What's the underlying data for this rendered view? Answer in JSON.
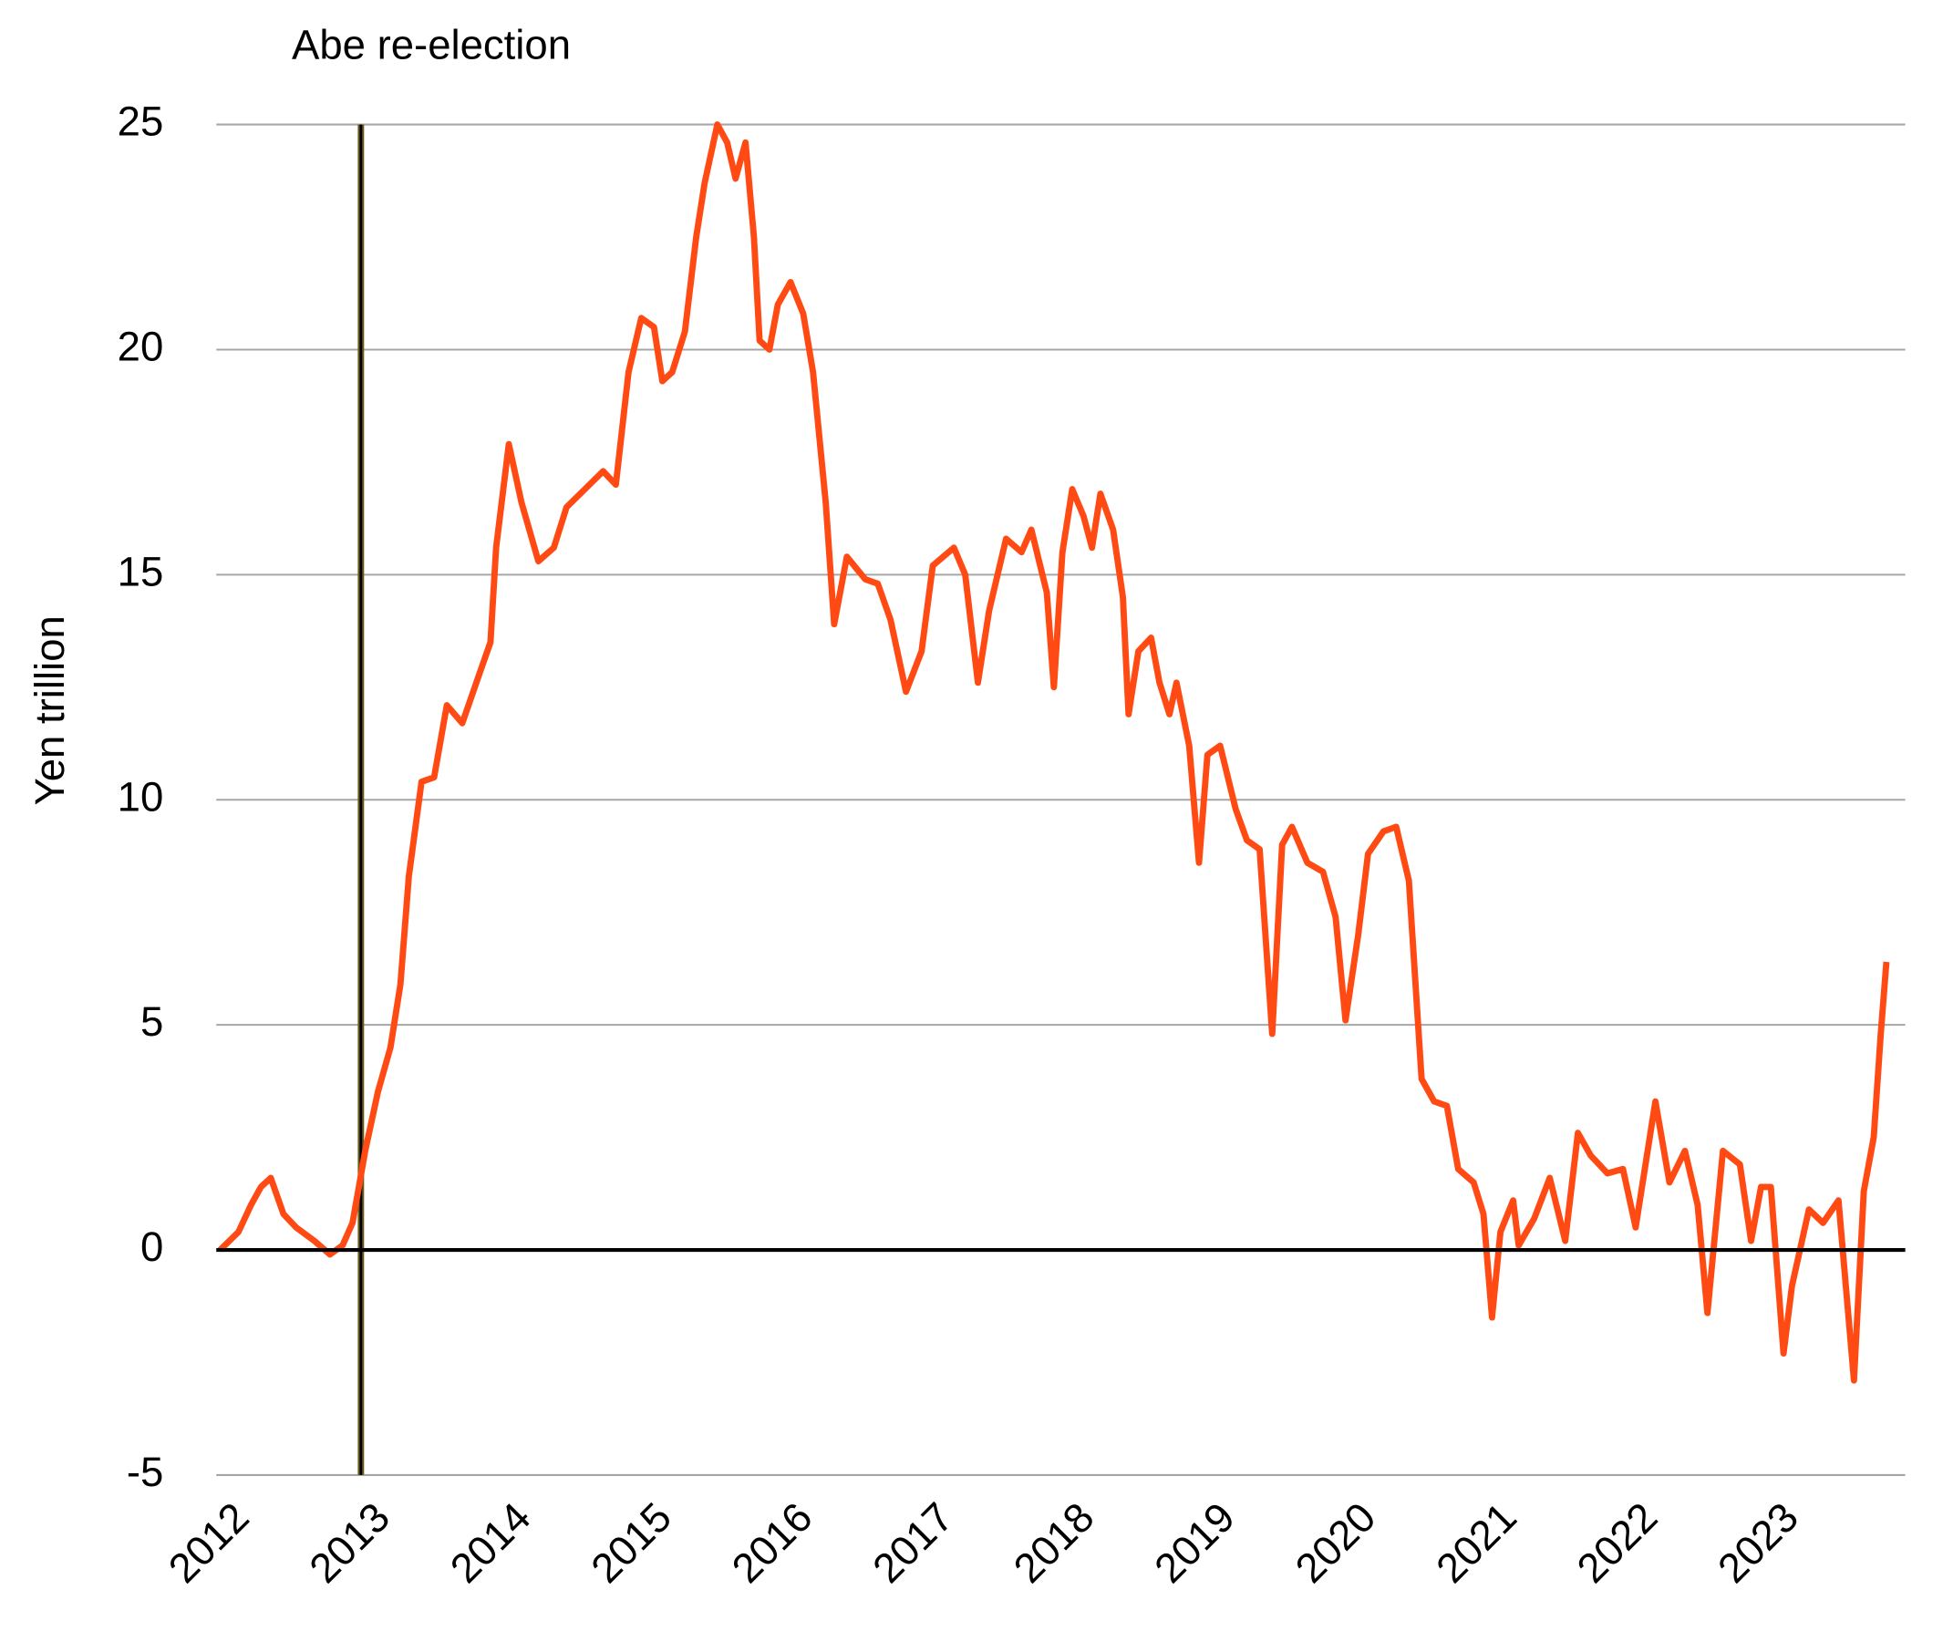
{
  "chart_data": {
    "type": "line",
    "y_label": "Yen trillion",
    "annotations": [
      {
        "x": 2013,
        "text": "Abe re-election"
      }
    ],
    "xlim": [
      2012,
      2024
    ],
    "xticks": [
      2012,
      2013,
      2014,
      2015,
      2016,
      2017,
      2018,
      2019,
      2020,
      2021,
      2022,
      2023
    ],
    "ylim": [
      -5,
      25
    ],
    "yticks": [
      -5,
      0,
      5,
      10,
      15,
      20,
      25
    ],
    "grid": true,
    "x": [
      2012.0,
      2012.13,
      2012.22,
      2012.29,
      2012.36,
      2012.45,
      2012.54,
      2012.67,
      2012.78,
      2012.87,
      2012.94,
      2013.03,
      2013.12,
      2013.21,
      2013.28,
      2013.34,
      2013.43,
      2013.52,
      2013.61,
      2013.72,
      2013.83,
      2013.92,
      2013.96,
      2014.05,
      2014.14,
      2014.26,
      2014.37,
      2014.46,
      2014.59,
      2014.72,
      2014.81,
      2014.9,
      2014.99,
      2015.08,
      2015.14,
      2015.21,
      2015.3,
      2015.38,
      2015.44,
      2015.53,
      2015.6,
      2015.66,
      2015.73,
      2015.79,
      2015.83,
      2015.9,
      2015.96,
      2016.05,
      2016.14,
      2016.21,
      2016.3,
      2016.36,
      2016.45,
      2016.58,
      2016.67,
      2016.76,
      2016.87,
      2016.98,
      2017.06,
      2017.21,
      2017.29,
      2017.38,
      2017.46,
      2017.58,
      2017.69,
      2017.76,
      2017.87,
      2017.92,
      2017.98,
      2018.05,
      2018.13,
      2018.19,
      2018.25,
      2018.34,
      2018.41,
      2018.45,
      2018.52,
      2018.61,
      2018.67,
      2018.74,
      2018.79,
      2018.88,
      2018.95,
      2019.01,
      2019.1,
      2019.21,
      2019.29,
      2019.38,
      2019.47,
      2019.54,
      2019.61,
      2019.72,
      2019.83,
      2019.92,
      2019.99,
      2020.08,
      2020.15,
      2020.26,
      2020.35,
      2020.44,
      2020.53,
      2020.62,
      2020.71,
      2020.79,
      2020.9,
      2020.97,
      2021.03,
      2021.09,
      2021.18,
      2021.22,
      2021.33,
      2021.44,
      2021.55,
      2021.64,
      2021.73,
      2021.85,
      2021.96,
      2022.05,
      2022.19,
      2022.29,
      2022.4,
      2022.49,
      2022.56,
      2022.67,
      2022.79,
      2022.87,
      2022.94,
      2023.01,
      2023.1,
      2023.16,
      2023.28,
      2023.38,
      2023.49,
      2023.6,
      2023.67,
      2023.74,
      2023.79,
      2023.83
    ],
    "series": [
      {
        "color": "#ff4a14",
        "values": [
          0,
          0.4,
          1.0,
          1.4,
          1.6,
          0.8,
          0.5,
          0.2,
          -0.1,
          0.1,
          0.6,
          2.2,
          3.5,
          4.5,
          5.9,
          8.3,
          10.4,
          10.5,
          12.1,
          11.7,
          12.7,
          13.5,
          15.6,
          17.9,
          16.6,
          15.3,
          15.6,
          16.5,
          16.9,
          17.3,
          17.0,
          19.5,
          20.7,
          20.5,
          19.3,
          19.5,
          20.4,
          22.5,
          23.7,
          25,
          24.6,
          23.8,
          24.6,
          22.5,
          20.2,
          20.0,
          21.0,
          21.5,
          20.8,
          19.5,
          16.6,
          13.9,
          15.4,
          14.9,
          14.8,
          14.0,
          12.4,
          13.3,
          15.2,
          15.6,
          15.0,
          12.6,
          14.2,
          15.8,
          15.5,
          16.0,
          14.6,
          12.5,
          15.5,
          16.9,
          16.3,
          15.6,
          16.8,
          16.0,
          14.5,
          11.9,
          13.3,
          13.6,
          12.6,
          11.9,
          12.6,
          11.2,
          8.6,
          11.0,
          11.2,
          9.8,
          9.1,
          8.9,
          4.8,
          9.0,
          9.4,
          8.6,
          8.4,
          7.4,
          5.1,
          7.0,
          8.8,
          9.3,
          9.4,
          8.2,
          3.8,
          3.3,
          3.2,
          1.8,
          1.5,
          0.8,
          -1.5,
          0.4,
          1.1,
          0.1,
          0.7,
          1.6,
          0.2,
          2.6,
          2.1,
          1.7,
          1.8,
          0.5,
          3.3,
          1.5,
          2.2,
          1.0,
          -1.4,
          2.2,
          1.9,
          0.2,
          1.4,
          1.4,
          -2.3,
          -0.8,
          0.9,
          0.6,
          1.1,
          -2.9,
          1.3,
          2.5,
          4.8,
          6.4
        ]
      }
    ]
  }
}
